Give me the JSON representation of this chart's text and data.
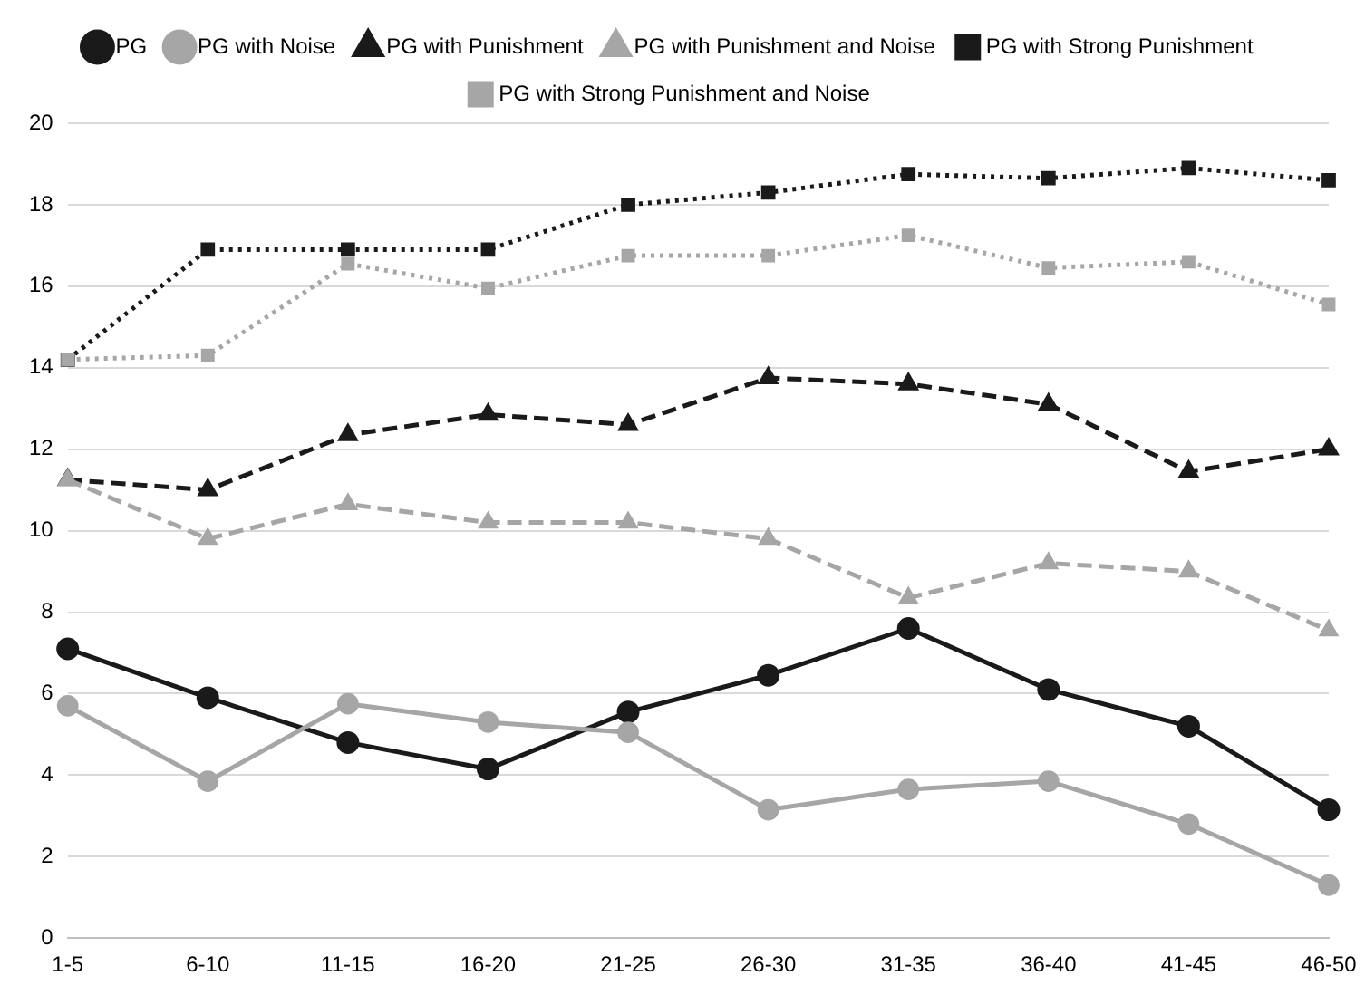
{
  "chart_data": {
    "type": "line",
    "categories": [
      "1-5",
      "6-10",
      "11-15",
      "16-20",
      "21-25",
      "26-30",
      "31-35",
      "36-40",
      "41-45",
      "46-50"
    ],
    "ylim": [
      0,
      20
    ],
    "yticks": [
      0,
      2,
      4,
      6,
      8,
      10,
      12,
      14,
      16,
      18,
      20
    ],
    "grid": "y",
    "legend": "top",
    "series": [
      {
        "name": "PG",
        "color": "#1a1a1a",
        "marker": "circle",
        "line_style": "solid",
        "values": [
          7.1,
          5.9,
          4.8,
          4.15,
          5.55,
          6.45,
          7.6,
          6.1,
          5.2,
          3.15
        ]
      },
      {
        "name": "PG with Noise",
        "color": "#a6a6a6",
        "marker": "circle",
        "line_style": "solid",
        "values": [
          5.7,
          3.85,
          5.75,
          5.3,
          5.05,
          3.15,
          3.65,
          3.85,
          2.8,
          1.3
        ]
      },
      {
        "name": "PG with Punishment",
        "color": "#1a1a1a",
        "marker": "triangle",
        "line_style": "dashed",
        "values": [
          11.25,
          11.0,
          12.35,
          12.85,
          12.6,
          13.75,
          13.6,
          13.1,
          11.45,
          12.0
        ]
      },
      {
        "name": "PG with Punishment and Noise",
        "color": "#a6a6a6",
        "marker": "triangle",
        "line_style": "dashed",
        "values": [
          11.25,
          9.8,
          10.65,
          10.2,
          10.2,
          9.8,
          8.35,
          9.2,
          9.0,
          7.55
        ]
      },
      {
        "name": "PG with Strong Punishment",
        "color": "#1a1a1a",
        "marker": "square",
        "line_style": "dotted",
        "values": [
          14.2,
          16.9,
          16.9,
          16.9,
          18.0,
          18.3,
          18.75,
          18.65,
          18.9,
          18.6
        ]
      },
      {
        "name": "PG with Strong Punishment and Noise",
        "color": "#a6a6a6",
        "marker": "square",
        "line_style": "dotted",
        "values": [
          14.2,
          14.3,
          16.55,
          15.95,
          16.75,
          16.75,
          17.25,
          16.45,
          16.6,
          15.55
        ]
      }
    ]
  }
}
